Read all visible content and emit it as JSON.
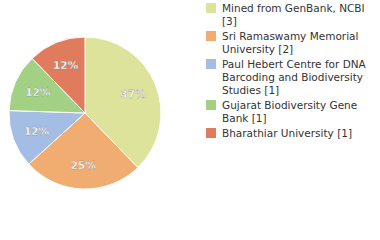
{
  "chart_data": {
    "type": "pie",
    "categories": [
      "Mined from GenBank, NCBI [3]",
      "Sri Ramaswamy Memorial University [2]",
      "Paul Hebert Centre for DNA Barcoding and Biodiversity Studies [1]",
      "Gujarat Biodiversity Gene Bank [1]",
      "Bharathiar University [1]"
    ],
    "values": [
      37,
      25,
      12,
      12,
      12
    ],
    "value_labels": [
      "37%",
      "25%",
      "12%",
      "12%",
      "12%"
    ],
    "colors": [
      "#dde39b",
      "#f1ad71",
      "#a3bde4",
      "#a2d184",
      "#e07c5d"
    ],
    "data_labels": true,
    "legend": "right"
  }
}
